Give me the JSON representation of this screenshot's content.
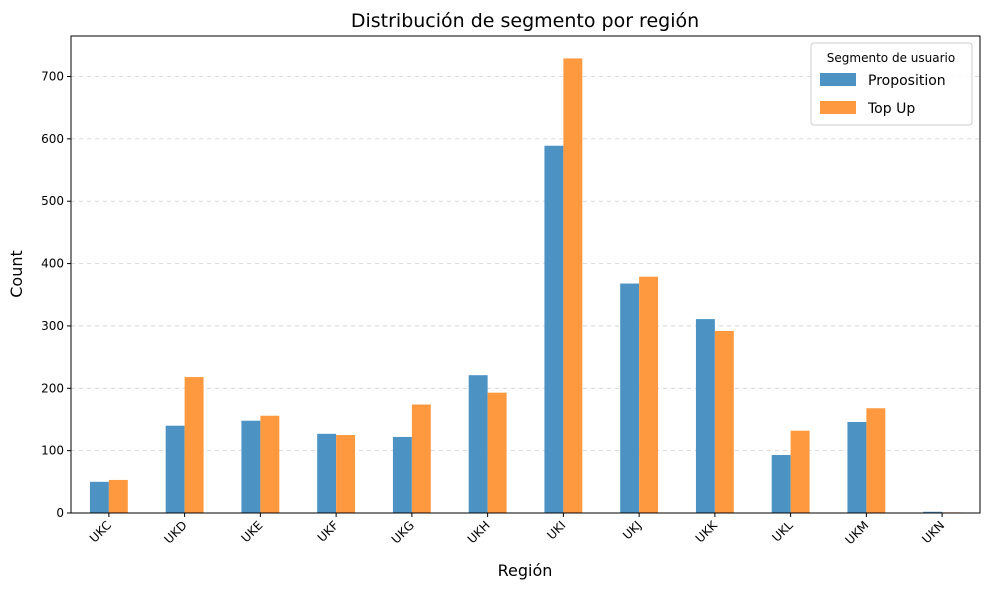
{
  "chart_data": {
    "type": "bar",
    "title": "Distribución de segmento por región",
    "xlabel": "Región",
    "ylabel": "Count",
    "categories": [
      "UKC",
      "UKD",
      "UKE",
      "UKF",
      "UKG",
      "UKH",
      "UKI",
      "UKJ",
      "UKK",
      "UKL",
      "UKM",
      "UKN"
    ],
    "series": [
      {
        "name": "Proposition",
        "color": "#4c93c3",
        "values": [
          50,
          140,
          148,
          127,
          122,
          221,
          589,
          368,
          311,
          93,
          146,
          2
        ]
      },
      {
        "name": "Top Up",
        "color": "#ff9940",
        "values": [
          53,
          218,
          156,
          125,
          174,
          193,
          729,
          379,
          292,
          132,
          168,
          1
        ]
      }
    ],
    "ylim": [
      0,
      765
    ],
    "yticks": [
      0,
      100,
      200,
      300,
      400,
      500,
      600,
      700
    ],
    "grid": true,
    "legend": {
      "title": "Segmento de usuario",
      "position": "top-right"
    }
  }
}
